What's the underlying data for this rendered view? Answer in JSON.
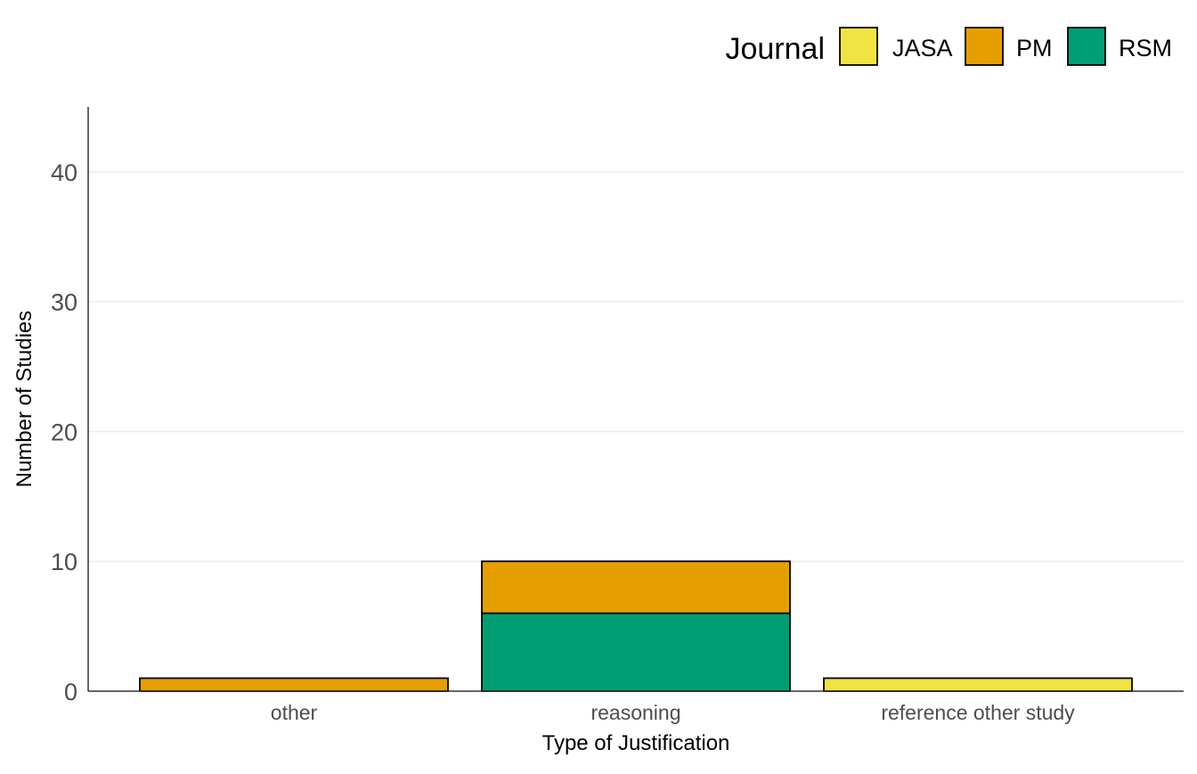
{
  "chart_data": {
    "type": "bar",
    "stacked": true,
    "title": "",
    "xlabel": "Type of Justification",
    "ylabel": "Number of Studies",
    "categories": [
      "other",
      "reasoning",
      "reference other study"
    ],
    "series": [
      {
        "name": "JASA",
        "color": "#F0E442",
        "values": [
          0,
          0,
          1
        ]
      },
      {
        "name": "PM",
        "color": "#E69F00",
        "values": [
          1,
          4,
          0
        ]
      },
      {
        "name": "RSM",
        "color": "#009E73",
        "values": [
          0,
          6,
          0
        ]
      }
    ],
    "stack_order_bottom_to_top": [
      "RSM",
      "PM",
      "JASA"
    ],
    "ylim": [
      0,
      45
    ],
    "yticks": [
      0,
      10,
      20,
      30,
      40
    ],
    "grid": "horizontal major",
    "legend": {
      "title": "Journal",
      "placement": "top-right",
      "orientation": "horizontal",
      "entries": [
        "JASA",
        "PM",
        "RSM"
      ]
    }
  }
}
